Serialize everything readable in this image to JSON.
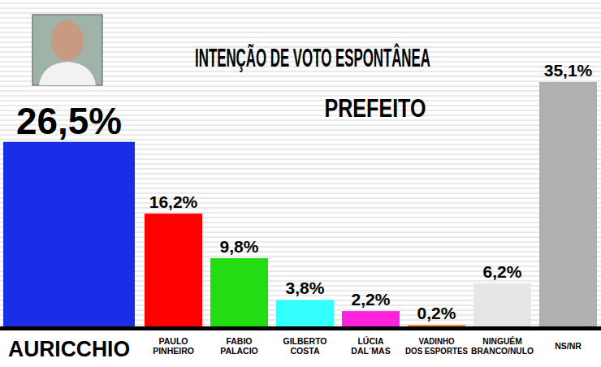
{
  "chart_data": {
    "type": "bar",
    "title": "INTENÇÃO DE VOTO ESPONTÂNEA",
    "subtitle": "PREFEITO",
    "categories": [
      "AURICCHIO",
      "PAULO PINHEIRO",
      "FABIO PALACIO",
      "GILBERTO COSTA",
      "LÚCIA DAL´MAS",
      "VADINHO DOS ESPORTES",
      "NINGUÉM BRANCO/NULO",
      "NS/NR"
    ],
    "values": [
      26.5,
      16.2,
      9.8,
      3.8,
      2.2,
      0.2,
      6.2,
      35.1
    ],
    "value_labels": [
      "26,5%",
      "16,2%",
      "9,8%",
      "3,8%",
      "2,2%",
      "0,2%",
      "6,2%",
      "35,1%"
    ],
    "colors": [
      "#1a2ee8",
      "#ff0000",
      "#22dd11",
      "#33ffff",
      "#ff22dd",
      "#ff8800",
      "#e6e6e6",
      "#b0b0b0"
    ],
    "data_labels": true,
    "tick_labels": false
  }
}
